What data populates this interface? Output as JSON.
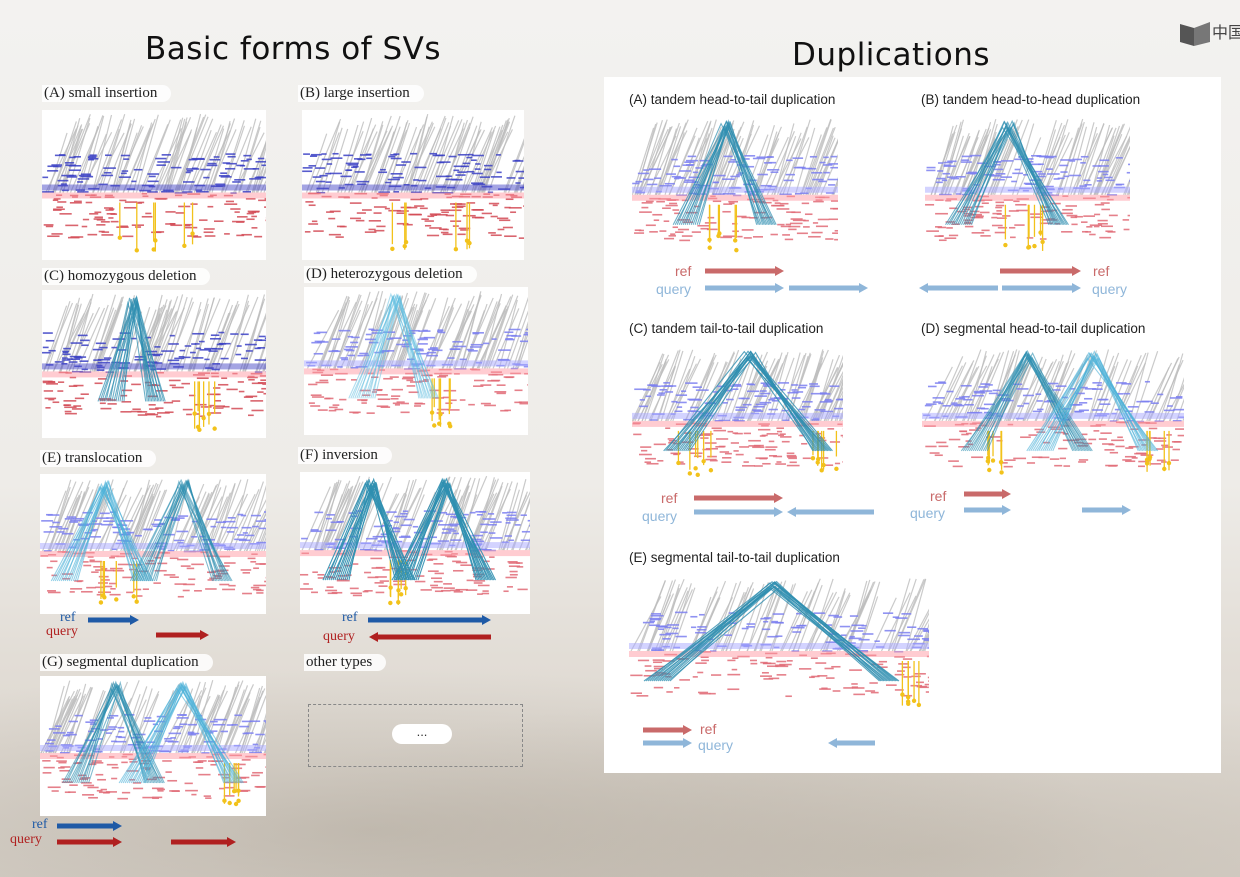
{
  "left_title": "Basic forms of SVs",
  "right_title": "Duplications",
  "logo_text": "中国",
  "basic_panels": [
    {
      "id": "A",
      "label": "(A) small insertion"
    },
    {
      "id": "B",
      "label": "(B) large insertion"
    },
    {
      "id": "C",
      "label": "(C) homozygous deletion"
    },
    {
      "id": "D",
      "label": "(D) heterozygous deletion"
    },
    {
      "id": "E",
      "label": "(E) translocation"
    },
    {
      "id": "F",
      "label": "(F) inversion"
    },
    {
      "id": "G",
      "label": "(G) segmental duplication"
    }
  ],
  "other_types_label": "other types",
  "ellipsis": "...",
  "arrow_labels": {
    "ref": "ref",
    "query": "query"
  },
  "dup_panels": [
    {
      "id": "A",
      "label": "(A)  tandem head-to-tail duplication"
    },
    {
      "id": "B",
      "label": "(B)  tandem head-to-head duplication"
    },
    {
      "id": "C",
      "label": "(C)  tandem tail-to-tail duplication"
    },
    {
      "id": "D",
      "label": "(D)  segmental head-to-tail duplication"
    },
    {
      "id": "E",
      "label": "(E)  segmental tail-to-tail duplication"
    }
  ],
  "colors": {
    "ref_dark": "#1f5aa6",
    "query_dark": "#b02020",
    "ref_light": "#c96a6a",
    "query_light": "#8fb6d9",
    "gray": "#bdbdbd",
    "blue": "#3a3fc4",
    "red": "#d24a55",
    "teal": "#2f8fb0",
    "yellow": "#f2c21b"
  }
}
